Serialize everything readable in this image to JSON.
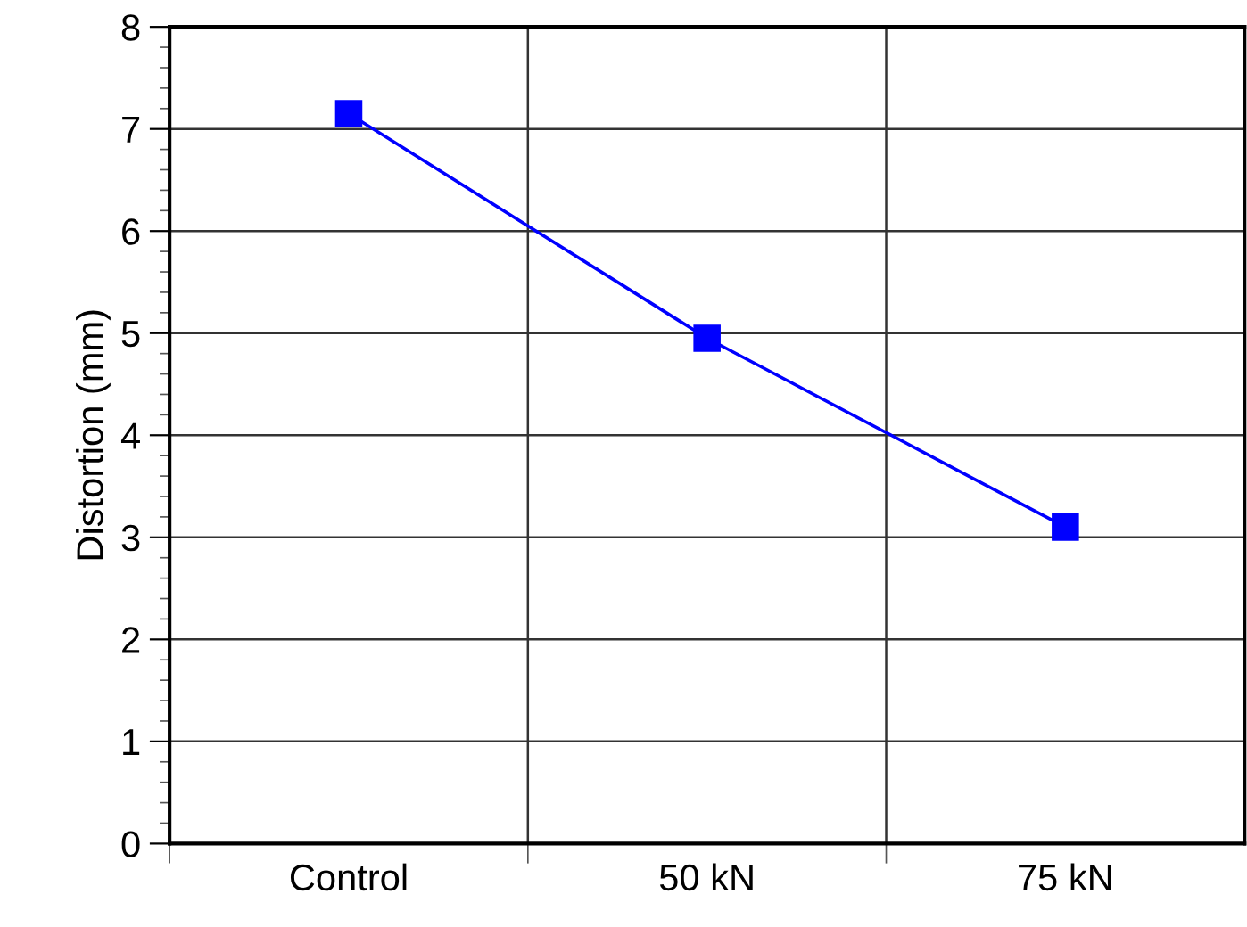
{
  "chart_data": {
    "type": "line",
    "ylabel": "Distortion (mm)",
    "categories": [
      "Control",
      "50 kN",
      "75 kN"
    ],
    "series": [
      {
        "color": "#0000ff",
        "values": [
          7.15,
          4.95,
          3.1
        ]
      }
    ],
    "ylim": [
      0,
      8
    ],
    "yticks": [
      0,
      1,
      2,
      3,
      4,
      5,
      6,
      7,
      8
    ],
    "grid": true,
    "marker": "square",
    "line_style": "solid",
    "legend": false
  }
}
